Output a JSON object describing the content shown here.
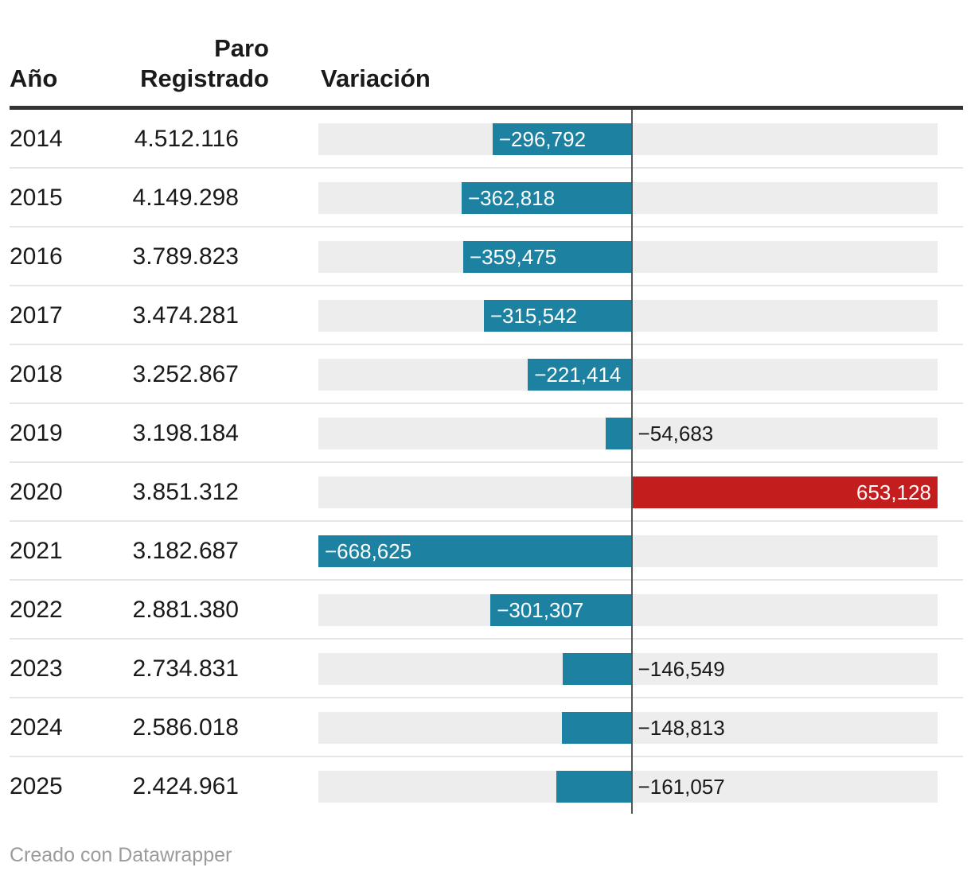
{
  "header": {
    "anio": "Año",
    "paro_line1": "Paro",
    "paro_line2": "Registrado",
    "variacion": "Variación"
  },
  "footer": {
    "text": "Creado con Datawrapper"
  },
  "colors": {
    "negative_bar": "#1d81a2",
    "positive_bar": "#c41d1d",
    "track": "#ededed",
    "zero_line": "#565656",
    "header_rule": "#333333",
    "row_separator": "#e6e6e6",
    "text": "#1a1a1a",
    "bar_label_inside": "#ffffff",
    "footer_text": "#9b9b9b"
  },
  "chart_data": {
    "type": "bar",
    "orientation": "horizontal",
    "title": "",
    "columns": [
      "Año",
      "Paro Registrado",
      "Variación"
    ],
    "xlim": [
      -668625,
      653128
    ],
    "grid": false,
    "legend": "none",
    "rows": [
      {
        "year": "2014",
        "paro_registrado": "4.512.116",
        "variacion": -296792,
        "variacion_label": "−296,792"
      },
      {
        "year": "2015",
        "paro_registrado": "4.149.298",
        "variacion": -362818,
        "variacion_label": "−362,818"
      },
      {
        "year": "2016",
        "paro_registrado": "3.789.823",
        "variacion": -359475,
        "variacion_label": "−359,475"
      },
      {
        "year": "2017",
        "paro_registrado": "3.474.281",
        "variacion": -315542,
        "variacion_label": "−315,542"
      },
      {
        "year": "2018",
        "paro_registrado": "3.252.867",
        "variacion": -221414,
        "variacion_label": "−221,414"
      },
      {
        "year": "2019",
        "paro_registrado": "3.198.184",
        "variacion": -54683,
        "variacion_label": "−54,683"
      },
      {
        "year": "2020",
        "paro_registrado": "3.851.312",
        "variacion": 653128,
        "variacion_label": "653,128"
      },
      {
        "year": "2021",
        "paro_registrado": "3.182.687",
        "variacion": -668625,
        "variacion_label": "−668,625"
      },
      {
        "year": "2022",
        "paro_registrado": "2.881.380",
        "variacion": -301307,
        "variacion_label": "−301,307"
      },
      {
        "year": "2023",
        "paro_registrado": "2.734.831",
        "variacion": -146549,
        "variacion_label": "−146,549"
      },
      {
        "year": "2024",
        "paro_registrado": "2.586.018",
        "variacion": -148813,
        "variacion_label": "−148,813"
      },
      {
        "year": "2025",
        "paro_registrado": "2.424.961",
        "variacion": -161057,
        "variacion_label": "−161,057"
      }
    ]
  }
}
